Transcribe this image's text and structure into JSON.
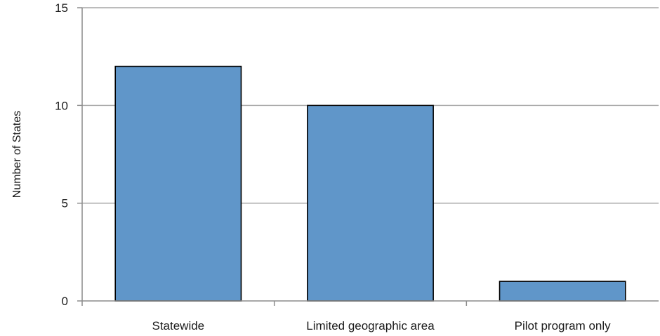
{
  "chart_data": {
    "type": "bar",
    "title": "",
    "xlabel": "",
    "ylabel": "Number of States",
    "categories": [
      "Statewide",
      "Limited geographic area",
      "Pilot program only"
    ],
    "values": [
      12,
      10,
      1
    ],
    "ylim": [
      0,
      15
    ],
    "yticks": [
      0,
      5,
      10,
      15
    ],
    "grid": true,
    "bar_color": "#6096c9"
  }
}
